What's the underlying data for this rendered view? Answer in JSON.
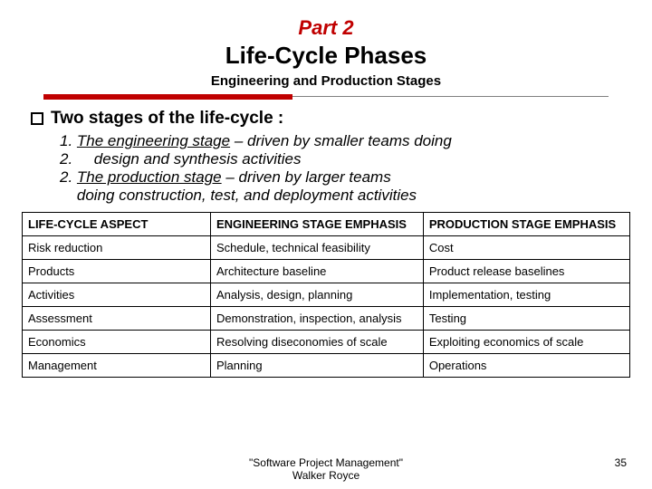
{
  "title": {
    "part": "Part 2",
    "main": "Life-Cycle Phases",
    "subtitle": "Engineering and Production Stages",
    "part_color": "#c00000",
    "part_fontsize": 22,
    "main_fontsize": 26,
    "subtitle_fontsize": 15
  },
  "rule": {
    "red_color": "#c00000",
    "gray_color": "#808080"
  },
  "section": {
    "heading": "Two stages of the life-cycle :",
    "heading_fontsize": 19,
    "stage_fontsize": 17,
    "stage_lines": [
      "1. <em class=\"u\">The engineering stage</em> – driven by smaller teams doing",
      "2. &nbsp;&nbsp;&nbsp;&nbsp;design and synthesis activities",
      "2. <em class=\"u\">The production stage</em> – driven by larger teams",
      "&nbsp;&nbsp;&nbsp;&nbsp;doing construction, test, and deployment activities"
    ]
  },
  "table": {
    "header_fontsize": 13,
    "cell_fontsize": 13,
    "columns": [
      "LIFE-CYCLE ASPECT",
      "ENGINEERING STAGE EMPHASIS",
      "PRODUCTION STAGE EMPHASIS"
    ],
    "rows": [
      [
        "Risk reduction",
        "Schedule, technical feasibility",
        "Cost"
      ],
      [
        "Products",
        "Architecture baseline",
        "Product release baselines"
      ],
      [
        "Activities",
        "Analysis, design, planning",
        "Implementation, testing"
      ],
      [
        "Assessment",
        "Demonstration, inspection, analysis",
        "Testing"
      ],
      [
        "Economics",
        "Resolving diseconomies of scale",
        "Exploiting economics of scale"
      ],
      [
        "Management",
        "Planning",
        "Operations"
      ]
    ]
  },
  "footer": {
    "citation_line1": "\"Software Project Management\"",
    "citation_line2": "Walker Royce",
    "page": "35",
    "fontsize": 12
  }
}
